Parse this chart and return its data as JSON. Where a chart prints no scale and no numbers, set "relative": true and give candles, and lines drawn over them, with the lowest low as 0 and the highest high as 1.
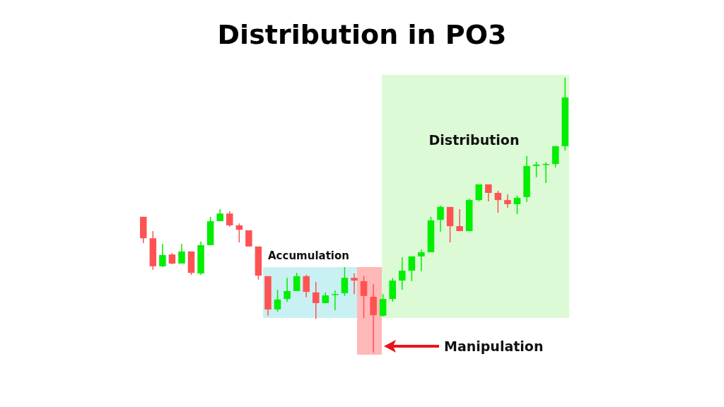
{
  "chart_data": {
    "type": "candlestick",
    "title": "Distribution in PO3",
    "relative": true,
    "categories": [
      null,
      null,
      null,
      null,
      null,
      null,
      null,
      null,
      null,
      null,
      null,
      null,
      null,
      null,
      null,
      null,
      null,
      null,
      null,
      null,
      null,
      null,
      null,
      null,
      null,
      null,
      null,
      null,
      null,
      null,
      null,
      null,
      null,
      null,
      null,
      null,
      null,
      null,
      null,
      null,
      null,
      null,
      null,
      null,
      null
    ],
    "ohlc": [
      [
        0.494,
        0.494,
        0.398,
        0.416
      ],
      [
        0.416,
        0.442,
        0.301,
        0.314
      ],
      [
        0.314,
        0.396,
        0.311,
        0.355
      ],
      [
        0.357,
        0.362,
        0.321,
        0.324
      ],
      [
        0.324,
        0.396,
        0.324,
        0.368
      ],
      [
        0.368,
        0.368,
        0.283,
        0.29
      ],
      [
        0.288,
        0.404,
        0.283,
        0.391
      ],
      [
        0.391,
        0.494,
        0.391,
        0.478
      ],
      [
        0.478,
        0.522,
        0.478,
        0.506
      ],
      [
        0.506,
        0.514,
        0.458,
        0.463
      ],
      [
        0.463,
        0.47,
        0.401,
        0.447
      ],
      [
        0.445,
        0.445,
        0.386,
        0.386
      ],
      [
        0.386,
        0.386,
        0.265,
        0.28
      ],
      [
        0.278,
        0.278,
        0.134,
        0.157
      ],
      [
        0.157,
        0.229,
        0.149,
        0.193
      ],
      [
        0.195,
        0.272,
        0.185,
        0.224
      ],
      [
        0.224,
        0.29,
        0.224,
        0.278
      ],
      [
        0.278,
        0.283,
        0.201,
        0.221
      ],
      [
        0.219,
        0.257,
        0.123,
        0.18
      ],
      [
        0.18,
        0.219,
        0.18,
        0.208
      ],
      [
        0.211,
        0.226,
        0.154,
        0.213
      ],
      [
        0.216,
        0.311,
        0.206,
        0.272
      ],
      [
        0.272,
        0.288,
        0.213,
        0.262
      ],
      [
        0.26,
        0.278,
        0.126,
        0.206
      ],
      [
        0.203,
        0.249,
        0,
        0.136
      ],
      [
        0.134,
        0.213,
        0.131,
        0.195
      ],
      [
        0.195,
        0.272,
        0.185,
        0.262
      ],
      [
        0.262,
        0.347,
        0.229,
        0.298
      ],
      [
        0.298,
        0.35,
        0.26,
        0.35
      ],
      [
        0.35,
        0.375,
        0.296,
        0.365
      ],
      [
        0.365,
        0.494,
        0.365,
        0.481
      ],
      [
        0.483,
        0.535,
        0.44,
        0.53
      ],
      [
        0.53,
        0.53,
        0.401,
        0.46
      ],
      [
        0.46,
        0.522,
        0.442,
        0.442
      ],
      [
        0.442,
        0.56,
        0.442,
        0.555
      ],
      [
        0.555,
        0.612,
        0.55,
        0.612
      ],
      [
        0.612,
        0.612,
        0.55,
        0.581
      ],
      [
        0.581,
        0.589,
        0.509,
        0.555
      ],
      [
        0.555,
        0.576,
        0.527,
        0.54
      ],
      [
        0.54,
        0.571,
        0.504,
        0.563
      ],
      [
        0.566,
        0.715,
        0.548,
        0.679
      ],
      [
        0.679,
        0.694,
        0.638,
        0.684
      ],
      [
        0.684,
        0.692,
        0.617,
        0.686
      ],
      [
        0.686,
        0.751,
        0.674,
        0.751
      ],
      [
        0.751,
        1,
        0.735,
        0.928
      ]
    ],
    "colors": [
      "#ff5252",
      "#ff5252",
      "#00ee00",
      "#ff5252",
      "#00ee00",
      "#ff5252",
      "#00ee00",
      "#00ee00",
      "#00ee00",
      "#ff5252",
      "#ff5252",
      "#ff5252",
      "#ff5252",
      "#ff5252",
      "#00ee00",
      "#00ee00",
      "#00ee00",
      "#ff5252",
      "#ff5252",
      "#00ee00",
      "#00ee00",
      "#00ee00",
      "#ff5252",
      "#ff5252",
      "#ff5252",
      "#00ee00",
      "#00ee00",
      "#00ee00",
      "#00ee00",
      "#00ee00",
      "#00ee00",
      "#00ee00",
      "#ff5252",
      "#ff5252",
      "#00ee00",
      "#00ee00",
      "#ff5252",
      "#ff5252",
      "#ff5252",
      "#00ee00",
      "#00ee00",
      "#00ee00",
      "#00ee00",
      "#00ee00",
      "#00ee00"
    ],
    "annotations": [
      "Accumulation",
      "Manipulation",
      "Distribution"
    ]
  }
}
